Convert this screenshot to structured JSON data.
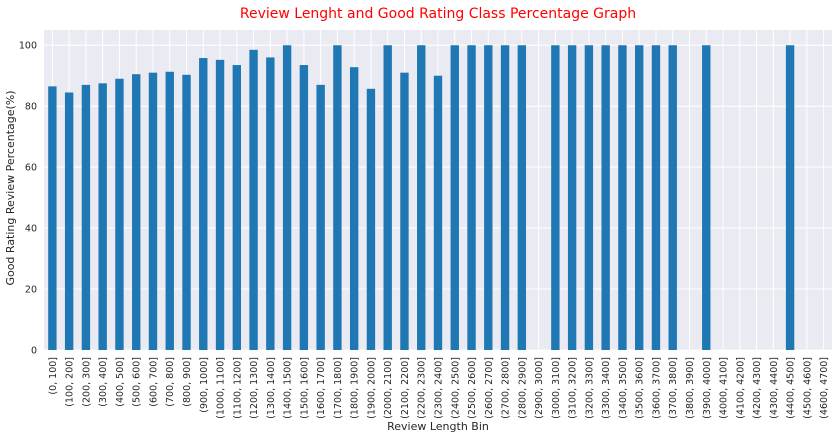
{
  "chart_data": {
    "type": "bar",
    "title": "Review Lenght and Good Rating Class Percentage Graph",
    "xlabel": "Review Length Bin",
    "ylabel": "Good Rating Review Percentage(%)",
    "ylim": [
      0,
      105
    ],
    "yticks": [
      0,
      20,
      40,
      60,
      80,
      100
    ],
    "grid": true,
    "bar_color": "#1f77b4",
    "title_color": "#ff0000",
    "background_color": "#eaeaf2",
    "categories": [
      "(0, 100]",
      "(100, 200]",
      "(200, 300]",
      "(300, 400]",
      "(400, 500]",
      "(500, 600]",
      "(600, 700]",
      "(700, 800]",
      "(800, 900]",
      "(900, 1000]",
      "(1000, 1100]",
      "(1100, 1200]",
      "(1200, 1300]",
      "(1300, 1400]",
      "(1400, 1500]",
      "(1500, 1600]",
      "(1600, 1700]",
      "(1700, 1800]",
      "(1800, 1900]",
      "(1900, 2000]",
      "(2000, 2100]",
      "(2100, 2200]",
      "(2200, 2300]",
      "(2300, 2400]",
      "(2400, 2500]",
      "(2500, 2600]",
      "(2600, 2700]",
      "(2700, 2800]",
      "(2800, 2900]",
      "(2900, 3000]",
      "(3000, 3100]",
      "(3100, 3200]",
      "(3200, 3300]",
      "(3300, 3400]",
      "(3400, 3500]",
      "(3500, 3600]",
      "(3600, 3700]",
      "(3700, 3800]",
      "(3800, 3900]",
      "(3900, 4000]",
      "(4000, 4100]",
      "(4100, 4200]",
      "(4200, 4300]",
      "(4300, 4400]",
      "(4400, 4500]",
      "(4500, 4600]",
      "(4600, 4700]"
    ],
    "values": [
      86.5,
      84.5,
      87.0,
      87.5,
      89.0,
      90.5,
      91.0,
      91.3,
      90.3,
      95.8,
      95.2,
      93.5,
      98.5,
      96.0,
      100,
      93.5,
      87.0,
      100,
      92.8,
      85.7,
      100,
      91.0,
      100,
      90.0,
      100,
      100,
      100,
      100,
      100,
      0,
      100,
      100,
      100,
      100,
      100,
      100,
      100,
      100,
      0,
      100,
      0,
      0,
      0,
      0,
      100,
      0,
      0
    ]
  }
}
